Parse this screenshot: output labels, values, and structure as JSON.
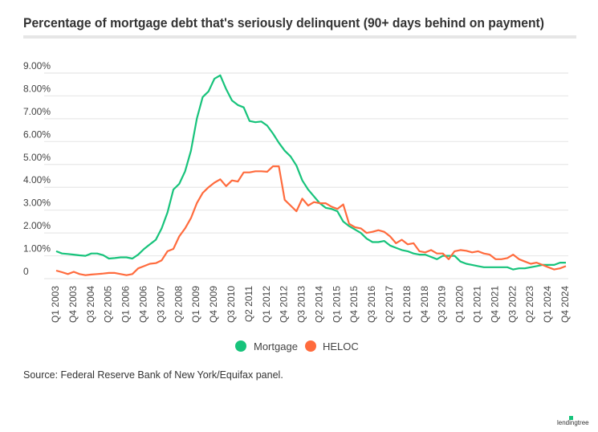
{
  "chart_data": {
    "type": "line",
    "title": "Percentage of mortgage debt that's seriously delinquent (90+ days behind on payment)",
    "source": "Source: Federal Reserve Bank of New York/Equifax panel.",
    "logo_text": "lendingtree",
    "ylim": [
      0,
      9
    ],
    "y_ticks": [
      "0",
      "1.00%",
      "2.00%",
      "3.00%",
      "4.00%",
      "5.00%",
      "6.00%",
      "7.00%",
      "8.00%",
      "9.00%"
    ],
    "y_tick_values": [
      0,
      1,
      2,
      3,
      4,
      5,
      6,
      7,
      8,
      9
    ],
    "x_tick_labels": [
      "Q1 2003",
      "Q4 2003",
      "Q3 2004",
      "Q2 2005",
      "Q1 2006",
      "Q4 2006",
      "Q3 2007",
      "Q2 2008",
      "Q1 2009",
      "Q4 2009",
      "Q3 2010",
      "Q2 2011",
      "Q1 2012",
      "Q4 2012",
      "Q3 2013",
      "Q2 2014",
      "Q1 2015",
      "Q4 2015",
      "Q3 2016",
      "Q2 2017",
      "Q1 2018",
      "Q4 2018",
      "Q3 2019",
      "Q1 2020",
      "Q1 2021",
      "Q4 2021",
      "Q3 2022",
      "Q2 2023",
      "Q1 2024",
      "Q4 2024"
    ],
    "x_range": [
      "Q1 2003",
      "Q4 2024"
    ],
    "grid": "horizontal",
    "legend_position": "bottom",
    "series": [
      {
        "name": "Mortgage",
        "color": "#17c37b",
        "values": [
          1.2,
          1.1,
          1.08,
          1.05,
          1.02,
          1.0,
          1.1,
          1.1,
          1.03,
          0.88,
          0.9,
          0.93,
          0.93,
          0.88,
          1.05,
          1.3,
          1.5,
          1.7,
          2.2,
          2.9,
          3.9,
          4.15,
          4.7,
          5.6,
          7.0,
          7.95,
          8.2,
          8.75,
          8.9,
          8.3,
          7.8,
          7.6,
          7.5,
          6.9,
          6.85,
          6.88,
          6.7,
          6.35,
          5.95,
          5.6,
          5.35,
          4.95,
          4.3,
          3.9,
          3.6,
          3.3,
          3.1,
          3.05,
          2.95,
          2.5,
          2.3,
          2.15,
          2.0,
          1.75,
          1.6,
          1.6,
          1.65,
          1.45,
          1.35,
          1.25,
          1.2,
          1.1,
          1.05,
          1.05,
          0.95,
          0.85,
          1.0,
          1.0,
          1.0,
          0.75,
          0.65,
          0.6,
          0.55,
          0.5,
          0.5,
          0.5,
          0.5,
          0.5,
          0.4,
          0.45,
          0.45,
          0.5,
          0.55,
          0.6,
          0.6,
          0.6,
          0.7,
          0.7
        ]
      },
      {
        "name": "HELOC",
        "color": "#ff6b3d",
        "values": [
          0.35,
          0.28,
          0.2,
          0.3,
          0.2,
          0.15,
          0.18,
          0.2,
          0.22,
          0.25,
          0.25,
          0.2,
          0.15,
          0.2,
          0.45,
          0.55,
          0.65,
          0.68,
          0.8,
          1.2,
          1.3,
          1.85,
          2.2,
          2.65,
          3.3,
          3.75,
          4.0,
          4.2,
          4.35,
          4.05,
          4.3,
          4.25,
          4.65,
          4.65,
          4.7,
          4.7,
          4.68,
          4.92,
          4.92,
          3.45,
          3.2,
          2.95,
          3.5,
          3.2,
          3.35,
          3.3,
          3.3,
          3.15,
          3.05,
          3.25,
          2.4,
          2.25,
          2.2,
          2.0,
          2.05,
          2.12,
          2.05,
          1.85,
          1.55,
          1.7,
          1.5,
          1.55,
          1.2,
          1.15,
          1.25,
          1.1,
          1.1,
          0.85,
          1.2,
          1.25,
          1.22,
          1.15,
          1.2,
          1.1,
          1.05,
          0.85,
          0.85,
          0.9,
          1.05,
          0.85,
          0.75,
          0.65,
          0.7,
          0.6,
          0.5,
          0.4,
          0.45,
          0.55
        ]
      }
    ]
  }
}
